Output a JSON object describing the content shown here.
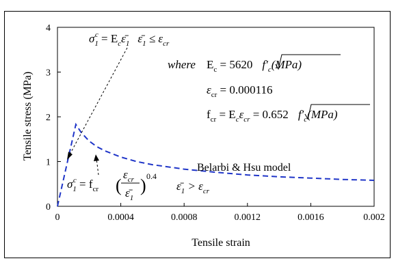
{
  "chart_data": {
    "type": "line",
    "xlabel": "Tensile strain",
    "ylabel": "Tensile stress (MPa)",
    "xlim": [
      0,
      0.002
    ],
    "ylim": [
      0,
      4
    ],
    "x_ticks": [
      0,
      0.0004,
      0.0008,
      0.0012,
      0.0016,
      0.002
    ],
    "x_tick_labels": [
      "0",
      "0.0004",
      "0.0008",
      "0.0012",
      "0.0016",
      "0.002"
    ],
    "y_ticks": [
      0,
      1,
      2,
      3,
      4
    ],
    "y_tick_labels": [
      "0",
      "1",
      "2",
      "3",
      "4"
    ],
    "grid": false,
    "series": [
      {
        "name": "Belarbi & Hsu model",
        "color": "#1f35c8",
        "style": "dashed",
        "x": [
          0,
          0.000116,
          0.00015,
          0.0002,
          0.00025,
          0.0003,
          0.0004,
          0.0005,
          0.0006,
          0.0008,
          0.001,
          0.0012,
          0.0014,
          0.0016,
          0.0018,
          0.002
        ],
        "y": [
          0,
          1.83,
          1.65,
          1.46,
          1.33,
          1.24,
          1.1,
          1.0,
          0.93,
          0.83,
          0.76,
          0.7,
          0.66,
          0.63,
          0.6,
          0.58
        ]
      }
    ],
    "annotations": {
      "eq1_lhs": "σ",
      "eq1_sub": "1",
      "eq1_sup": "c",
      "eq1_rhs": " = E",
      "eq1_rhs_sub": "c",
      "eq1_rhs2": "ε̄",
      "eq1_rhs2_sub": "1",
      "eq1_cond": "ε̄",
      "eq1_cond_sub": "1",
      "eq1_cond2": " ≤ ε",
      "eq1_cond2_sub": "cr",
      "where": "where",
      "ec_lhs": "E",
      "ec_sub": "c",
      "ec_rhs": " = 5620",
      "ec_root": "f′",
      "ec_root_sub": "c",
      "ec_root_unit": "(MPa)",
      "ecr_lhs": "ε",
      "ecr_sub": "cr",
      "ecr_rhs": " = 0.000116",
      "fcr_lhs": "f",
      "fcr_sub": "cr",
      "fcr_rhs": " = E",
      "fcr_rhs_sub": "c",
      "fcr_rhs2": "ε",
      "fcr_rhs2_sub": "cr",
      "fcr_rhs3": " = 0.652",
      "fcr_root": "f′",
      "fcr_root_sub": "c",
      "fcr_root_unit": "(MPa)",
      "eq2_lhs": "σ",
      "eq2_sub": "1",
      "eq2_sup": "c",
      "eq2_rhs": " = f",
      "eq2_rhs_sub": "cr",
      "eq2_frac_num": "ε",
      "eq2_frac_num_sub": "cr",
      "eq2_frac_den": "ε̄",
      "eq2_frac_den_sub": "1",
      "eq2_exp": "0.4",
      "eq2_cond": "ε̄",
      "eq2_cond_sub": "1",
      "eq2_cond2": " > ε",
      "eq2_cond2_sub": "cr",
      "model_label": "Belarbi & Hsu model"
    }
  }
}
